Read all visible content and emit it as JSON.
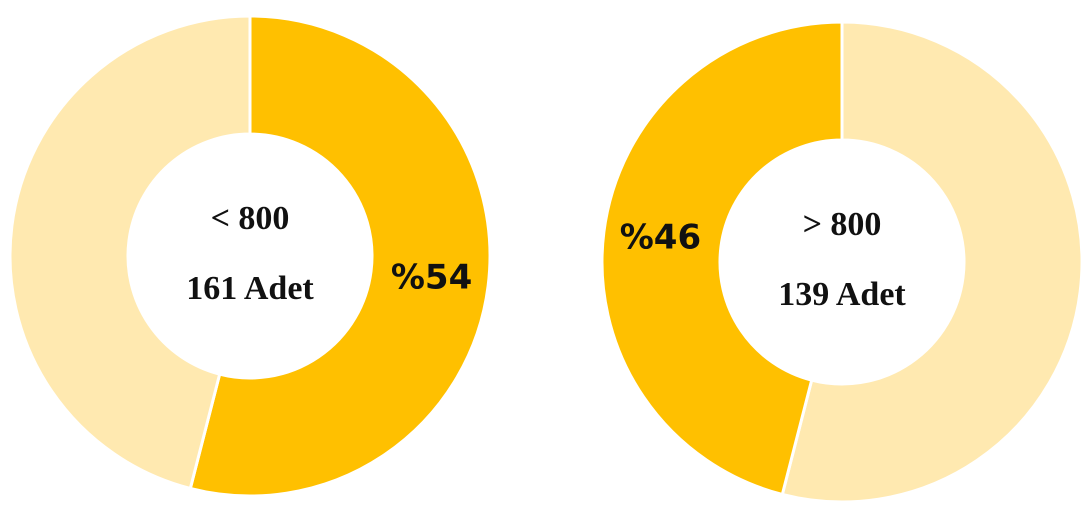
{
  "chart_data": [
    {
      "type": "pie",
      "values": [
        54,
        46
      ],
      "value_labels": [
        "%54",
        null
      ],
      "colors": [
        "#ffc000",
        "#ffe9b0"
      ],
      "center_text": [
        "< 800",
        "161 Adet"
      ]
    },
    {
      "type": "pie",
      "values": [
        54,
        46
      ],
      "value_labels": [
        null,
        "%46"
      ],
      "colors": [
        "#ffe9b0",
        "#ffc000"
      ],
      "center_text": [
        "> 800",
        "139 Adet"
      ]
    }
  ]
}
